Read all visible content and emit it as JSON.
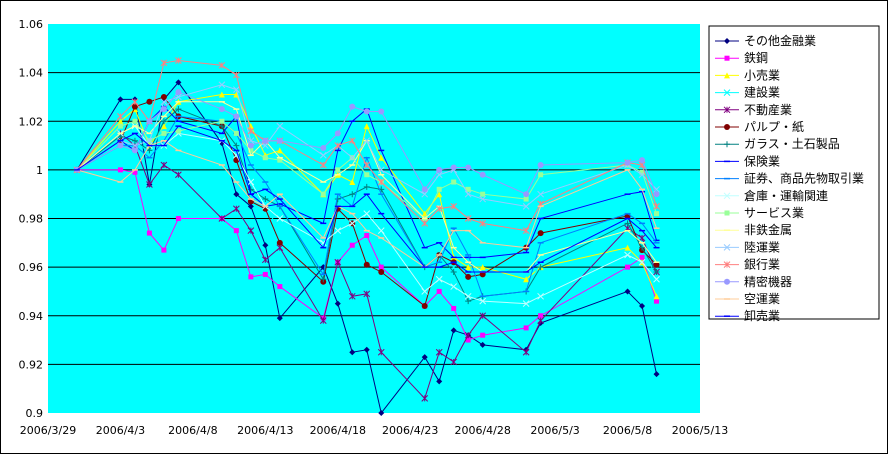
{
  "chart_data": {
    "type": "line",
    "title": "",
    "xlabel": "",
    "ylabel": "",
    "ylim": [
      0.9,
      1.06
    ],
    "yticks": [
      0.9,
      0.92,
      0.94,
      0.96,
      0.98,
      1,
      1.02,
      1.04,
      1.06
    ],
    "ytick_labels": [
      "0.9",
      "0.92",
      "0.94",
      "0.96",
      "0.98",
      "1",
      "1.02",
      "1.04",
      "1.06"
    ],
    "x_ticks": [
      {
        "label": "2006/3/29",
        "date": "2006-03-29"
      },
      {
        "label": "2006/4/3",
        "date": "2006-04-03"
      },
      {
        "label": "2006/4/8",
        "date": "2006-04-08"
      },
      {
        "label": "2006/4/13",
        "date": "2006-04-13"
      },
      {
        "label": "2006/4/18",
        "date": "2006-04-18"
      },
      {
        "label": "2006/4/23",
        "date": "2006-04-23"
      },
      {
        "label": "2006/4/28",
        "date": "2006-04-28"
      },
      {
        "label": "2006/5/3",
        "date": "2006-05-03"
      },
      {
        "label": "2006/5/8",
        "date": "2006-05-08"
      },
      {
        "label": "2006/5/13",
        "date": "2006-05-13"
      }
    ],
    "plot_background": "#00ffff",
    "grid": "horizontal",
    "legend_position": "right",
    "x": [
      "2006-03-31",
      "2006-04-03",
      "2006-04-04",
      "2006-04-05",
      "2006-04-06",
      "2006-04-07",
      "2006-04-10",
      "2006-04-11",
      "2006-04-12",
      "2006-04-13",
      "2006-04-14",
      "2006-04-17",
      "2006-04-18",
      "2006-04-19",
      "2006-04-20",
      "2006-04-21",
      "2006-04-24",
      "2006-04-25",
      "2006-04-26",
      "2006-04-27",
      "2006-04-28",
      "2006-05-01",
      "2006-05-02",
      "2006-05-08",
      "2006-05-09",
      "2006-05-10"
    ],
    "series": [
      {
        "name": "その他金融業",
        "color": "#000080",
        "marker": "diamond",
        "values": [
          1.0,
          1.029,
          1.029,
          0.994,
          1.029,
          1.036,
          1.011,
          0.99,
          0.985,
          0.969,
          0.939,
          0.96,
          0.945,
          0.925,
          0.926,
          0.9,
          0.923,
          0.913,
          0.934,
          0.932,
          0.928,
          0.926,
          0.937,
          0.95,
          0.944,
          0.916
        ]
      },
      {
        "name": "鉄鋼",
        "color": "#ff00ff",
        "marker": "square",
        "values": [
          1.0,
          1.0,
          0.999,
          0.974,
          0.967,
          0.98,
          0.98,
          0.975,
          0.956,
          0.957,
          0.952,
          0.939,
          0.962,
          0.969,
          0.973,
          0.96,
          0.944,
          0.95,
          0.943,
          0.93,
          0.932,
          0.935,
          0.94,
          0.96,
          0.964,
          0.946
        ]
      },
      {
        "name": "小売業",
        "color": "#ffff00",
        "marker": "triangle",
        "values": [
          1.0,
          1.02,
          1.025,
          1.01,
          1.018,
          1.028,
          1.031,
          1.031,
          1.018,
          1.006,
          1.008,
          0.99,
          0.998,
          0.995,
          1.018,
          1.005,
          0.982,
          0.99,
          0.964,
          0.96,
          0.96,
          0.955,
          0.96,
          0.968,
          0.962,
          0.948
        ]
      },
      {
        "name": "建設業",
        "color": "#00ffff",
        "marker": "x",
        "values": [
          1.0,
          1.012,
          1.015,
          1.005,
          1.02,
          1.022,
          1.018,
          1.01,
          0.995,
          0.985,
          0.975,
          0.968,
          0.986,
          0.975,
          0.988,
          0.97,
          0.945,
          0.955,
          0.96,
          0.948,
          0.952,
          0.95,
          0.962,
          0.978,
          0.97,
          0.955
        ]
      },
      {
        "name": "不動産業",
        "color": "#800080",
        "marker": "star",
        "values": [
          1.0,
          1.015,
          1.01,
          0.994,
          1.002,
          0.998,
          0.98,
          0.984,
          0.975,
          0.963,
          0.968,
          0.938,
          0.962,
          0.948,
          0.949,
          0.925,
          0.906,
          0.925,
          0.921,
          0.932,
          0.94,
          0.925,
          0.938,
          0.976,
          0.972,
          0.958
        ]
      },
      {
        "name": "パルプ・紙",
        "color": "#800000",
        "marker": "circle",
        "values": [
          1.0,
          1.012,
          1.026,
          1.028,
          1.03,
          1.022,
          1.018,
          1.004,
          0.987,
          0.984,
          0.97,
          0.954,
          0.984,
          0.978,
          0.961,
          0.958,
          0.944,
          0.965,
          0.962,
          0.956,
          0.957,
          0.968,
          0.974,
          0.981,
          0.967,
          0.961
        ]
      },
      {
        "name": "ガラス・土石製品",
        "color": "#008080",
        "marker": "plus",
        "values": [
          1.0,
          1.014,
          1.012,
          1.008,
          1.02,
          1.025,
          1.018,
          1.01,
          0.992,
          0.988,
          0.985,
          0.955,
          0.988,
          0.99,
          0.993,
          0.992,
          0.96,
          0.965,
          0.958,
          0.946,
          0.948,
          0.95,
          0.96,
          0.978,
          0.968,
          0.958
        ]
      },
      {
        "name": "保険業",
        "color": "#0000ff",
        "marker": "dash",
        "values": [
          1.0,
          1.012,
          1.008,
          1.02,
          1.026,
          1.02,
          1.015,
          1.022,
          0.99,
          0.985,
          0.986,
          0.978,
          1.008,
          1.02,
          1.025,
          1.008,
          0.968,
          0.97,
          0.964,
          0.964,
          0.964,
          0.966,
          0.98,
          0.99,
          0.991,
          0.971
        ]
      },
      {
        "name": "証券、商品先物取引業",
        "color": "#0080ff",
        "marker": "dash",
        "values": [
          1.0,
          1.01,
          1.01,
          1.005,
          1.012,
          1.022,
          1.02,
          1.015,
          1.002,
          0.995,
          0.985,
          0.957,
          0.99,
          0.985,
          1.005,
          0.99,
          0.96,
          0.962,
          0.976,
          0.965,
          0.948,
          0.95,
          0.97,
          0.982,
          0.978,
          0.97
        ]
      },
      {
        "name": "倉庫・運輸関連",
        "color": "#c0ffff",
        "marker": "x",
        "values": [
          1.0,
          1.015,
          1.018,
          1.01,
          1.01,
          1.015,
          1.012,
          1.006,
          0.995,
          0.985,
          0.98,
          0.97,
          0.975,
          0.978,
          0.982,
          0.975,
          0.95,
          0.955,
          0.952,
          0.948,
          0.946,
          0.945,
          0.948,
          0.965,
          0.962,
          0.955
        ]
      },
      {
        "name": "サービス業",
        "color": "#99ff99",
        "marker": "square",
        "values": [
          1.0,
          1.018,
          1.02,
          1.012,
          1.015,
          1.016,
          1.02,
          1.015,
          1.008,
          1.005,
          1.004,
          0.99,
          1.0,
          1.005,
          0.998,
          0.995,
          0.98,
          0.992,
          0.995,
          0.992,
          0.99,
          0.988,
          0.998,
          1.002,
          0.999,
          0.982
        ]
      },
      {
        "name": "非鉄金属",
        "color": "#ffff99",
        "marker": "dash",
        "values": [
          1.0,
          1.015,
          1.018,
          1.015,
          1.022,
          1.028,
          1.028,
          1.025,
          1.006,
          1.012,
          1.005,
          0.995,
          0.998,
          1.002,
          1.012,
          0.998,
          0.98,
          0.985,
          0.968,
          0.962,
          0.958,
          0.958,
          0.965,
          0.975,
          0.97,
          0.962
        ]
      },
      {
        "name": "陸運業",
        "color": "#99ccff",
        "marker": "x",
        "values": [
          1.0,
          1.012,
          1.01,
          1.012,
          1.028,
          1.03,
          1.035,
          1.033,
          1.012,
          1.01,
          1.018,
          1.006,
          1.01,
          1.005,
          1.012,
          1.0,
          0.99,
          0.998,
          1.0,
          0.99,
          0.988,
          0.985,
          0.99,
          1.002,
          0.998,
          0.992
        ]
      },
      {
        "name": "銀行業",
        "color": "#ff8080",
        "marker": "star",
        "values": [
          1.0,
          1.022,
          1.028,
          1.02,
          1.044,
          1.045,
          1.043,
          1.039,
          1.016,
          1.012,
          1.012,
          1.002,
          1.01,
          1.012,
          1.002,
          0.995,
          0.978,
          0.984,
          0.985,
          0.98,
          0.978,
          0.975,
          0.986,
          1.003,
          1.002,
          0.985
        ]
      },
      {
        "name": "精密機器",
        "color": "#9999ff",
        "marker": "circle",
        "values": [
          1.0,
          1.01,
          1.008,
          1.02,
          1.025,
          1.032,
          1.025,
          1.022,
          1.01,
          1.012,
          1.012,
          1.009,
          1.015,
          1.026,
          1.024,
          1.024,
          0.992,
          1.0,
          1.001,
          1.001,
          0.998,
          0.99,
          1.002,
          1.003,
          1.004,
          0.99
        ]
      },
      {
        "name": "空運業",
        "color": "#ffcc99",
        "marker": "dash",
        "values": [
          1.0,
          0.995,
          1.0,
          1.01,
          1.012,
          1.008,
          1.002,
          0.995,
          0.988,
          0.985,
          0.99,
          0.972,
          0.985,
          0.982,
          0.975,
          0.972,
          0.96,
          0.965,
          0.975,
          0.975,
          0.97,
          0.968,
          0.985,
          1.0,
          0.992,
          0.976
        ]
      },
      {
        "name": "卸売業",
        "color": "#0000ff",
        "marker": "dash",
        "values": [
          1.0,
          1.012,
          1.015,
          1.01,
          1.01,
          1.018,
          1.012,
          1.008,
          0.99,
          0.992,
          0.988,
          0.968,
          0.985,
          0.985,
          0.99,
          0.982,
          0.96,
          0.96,
          0.962,
          0.958,
          0.958,
          0.958,
          0.962,
          0.98,
          0.975,
          0.968
        ]
      }
    ]
  }
}
